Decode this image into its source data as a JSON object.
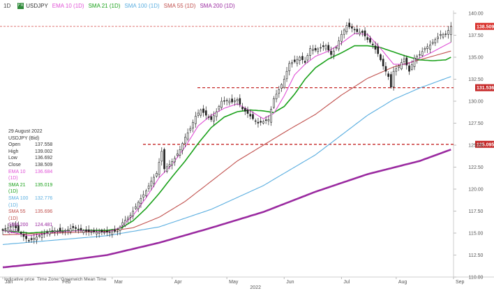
{
  "header": {
    "timeframe": "1D",
    "symbol": "USDJPY",
    "indicators": [
      {
        "label": "EMA 10 (1D)",
        "color": "#e052d6"
      },
      {
        "label": "SMA 21 (1D)",
        "color": "#1aa11a"
      },
      {
        "label": "SMA 100 (1D)",
        "color": "#5aaee0"
      },
      {
        "label": "SMA 55 (1D)",
        "color": "#c0504d"
      },
      {
        "label": "SMA 200 (1D)",
        "color": "#9a2aa0"
      }
    ]
  },
  "info_panel": {
    "date": "29 August 2022",
    "title": "USDJPY (Bid)",
    "rows": [
      {
        "label": "Open",
        "value": "137.558",
        "color": "#333333"
      },
      {
        "label": "High",
        "value": "139.002",
        "color": "#333333"
      },
      {
        "label": "Low",
        "value": "136.692",
        "color": "#333333"
      },
      {
        "label": "Close",
        "value": "138.509",
        "color": "#333333"
      },
      {
        "label": "EMA 10 (1D)",
        "value": "136.684",
        "color": "#e052d6"
      },
      {
        "label": "SMA 21 (1D)",
        "value": "135.019",
        "color": "#1aa11a"
      },
      {
        "label": "SMA 100 (1D)",
        "value": "132.776",
        "color": "#5aaee0"
      },
      {
        "label": "SMA 55 (1D)",
        "value": "135.696",
        "color": "#c0504d"
      },
      {
        "label": "SMA 200 (1D)",
        "value": "124.481",
        "color": "#9a2aa0"
      }
    ]
  },
  "footer": {
    "indicative": "Indicative price",
    "timezone": "Time Zone: Greenwich Mean Time"
  },
  "chart_data": {
    "type": "line",
    "subtype": "candlestick",
    "ylim": [
      110.0,
      140.0
    ],
    "yticks": [
      "140.00",
      "137.50",
      "135.00",
      "132.50",
      "130.00",
      "127.50",
      "125.00",
      "122.50",
      "120.00",
      "117.50",
      "115.00",
      "112.50",
      "110.00"
    ],
    "xlim": [
      0,
      172
    ],
    "x_ticks": [
      {
        "label": "Jan",
        "i": 0
      },
      {
        "label": "Feb",
        "i": 22
      },
      {
        "label": "Mar",
        "i": 42
      },
      {
        "label": "Apr",
        "i": 65
      },
      {
        "label": "May",
        "i": 86
      },
      {
        "label": "Jun",
        "i": 108
      },
      {
        "label": "Jul",
        "i": 130
      },
      {
        "label": "Aug",
        "i": 151
      },
      {
        "label": "Sep",
        "i": 173
      }
    ],
    "year_label": "2022",
    "close_points": [
      [
        0,
        115.3
      ],
      [
        4,
        115.9
      ],
      [
        8,
        114.6
      ],
      [
        10,
        114.1
      ],
      [
        14,
        114.7
      ],
      [
        19,
        115.3
      ],
      [
        23,
        115.2
      ],
      [
        27,
        115.6
      ],
      [
        32,
        115.2
      ],
      [
        36,
        115.1
      ],
      [
        40,
        115.1
      ],
      [
        44,
        115.2
      ],
      [
        46,
        116.2
      ],
      [
        49,
        117.0
      ],
      [
        52,
        118.5
      ],
      [
        55,
        119.8
      ],
      [
        57,
        120.9
      ],
      [
        59,
        121.8
      ],
      [
        61,
        124.3
      ],
      [
        62,
        122.3
      ],
      [
        64,
        122.8
      ],
      [
        66,
        123.5
      ],
      [
        68,
        124.5
      ],
      [
        70,
        125.9
      ],
      [
        72,
        126.9
      ],
      [
        74,
        128.3
      ],
      [
        76,
        129.0
      ],
      [
        78,
        128.4
      ],
      [
        80,
        127.9
      ],
      [
        82,
        128.8
      ],
      [
        84,
        130.0
      ],
      [
        86,
        130.1
      ],
      [
        88,
        129.9
      ],
      [
        90,
        130.2
      ],
      [
        92,
        129.1
      ],
      [
        94,
        128.6
      ],
      [
        96,
        128.0
      ],
      [
        98,
        127.5
      ],
      [
        100,
        127.7
      ],
      [
        102,
        127.9
      ],
      [
        104,
        130.3
      ],
      [
        106,
        131.3
      ],
      [
        108,
        132.5
      ],
      [
        110,
        134.3
      ],
      [
        112,
        134.5
      ],
      [
        114,
        135.0
      ],
      [
        116,
        134.4
      ],
      [
        118,
        136.0
      ],
      [
        120,
        135.8
      ],
      [
        122,
        136.1
      ],
      [
        124,
        136.3
      ],
      [
        126,
        135.3
      ],
      [
        128,
        136.1
      ],
      [
        130,
        137.6
      ],
      [
        132,
        138.6
      ],
      [
        134,
        138.3
      ],
      [
        136,
        137.9
      ],
      [
        138,
        137.8
      ],
      [
        140,
        137.0
      ],
      [
        142,
        136.4
      ],
      [
        144,
        135.4
      ],
      [
        146,
        134.0
      ],
      [
        148,
        132.8
      ],
      [
        149,
        131.6
      ],
      [
        150,
        133.4
      ],
      [
        152,
        134.0
      ],
      [
        154,
        134.8
      ],
      [
        156,
        133.4
      ],
      [
        158,
        134.9
      ],
      [
        160,
        135.3
      ],
      [
        162,
        136.0
      ],
      [
        164,
        136.4
      ],
      [
        166,
        137.0
      ],
      [
        168,
        137.6
      ],
      [
        170,
        137.6
      ],
      [
        172,
        138.5
      ]
    ],
    "series": [
      {
        "name": "EMA 10 (1D)",
        "color": "#e052d6",
        "points": [
          [
            0,
            115.3
          ],
          [
            10,
            114.7
          ],
          [
            20,
            115.1
          ],
          [
            30,
            115.3
          ],
          [
            40,
            115.1
          ],
          [
            45,
            115.6
          ],
          [
            50,
            117.0
          ],
          [
            55,
            119.0
          ],
          [
            60,
            121.3
          ],
          [
            65,
            122.8
          ],
          [
            70,
            124.8
          ],
          [
            75,
            127.2
          ],
          [
            80,
            128.4
          ],
          [
            85,
            129.2
          ],
          [
            90,
            129.7
          ],
          [
            95,
            128.9
          ],
          [
            100,
            128.0
          ],
          [
            104,
            128.6
          ],
          [
            108,
            130.6
          ],
          [
            112,
            133.0
          ],
          [
            116,
            134.2
          ],
          [
            120,
            135.1
          ],
          [
            125,
            135.7
          ],
          [
            130,
            136.6
          ],
          [
            135,
            137.7
          ],
          [
            140,
            137.6
          ],
          [
            145,
            136.0
          ],
          [
            150,
            134.2
          ],
          [
            155,
            134.2
          ],
          [
            160,
            134.9
          ],
          [
            165,
            135.6
          ],
          [
            170,
            136.4
          ],
          [
            172,
            136.7
          ]
        ]
      },
      {
        "name": "SMA 21 (1D)",
        "color": "#1aa11a",
        "points": [
          [
            0,
            115.3
          ],
          [
            10,
            115.0
          ],
          [
            20,
            115.2
          ],
          [
            30,
            115.3
          ],
          [
            40,
            115.3
          ],
          [
            45,
            115.5
          ],
          [
            50,
            116.4
          ],
          [
            55,
            117.8
          ],
          [
            60,
            119.5
          ],
          [
            65,
            121.4
          ],
          [
            70,
            123.2
          ],
          [
            75,
            125.2
          ],
          [
            80,
            127.0
          ],
          [
            85,
            128.2
          ],
          [
            90,
            128.8
          ],
          [
            95,
            129.0
          ],
          [
            100,
            128.9
          ],
          [
            104,
            128.7
          ],
          [
            108,
            129.4
          ],
          [
            112,
            130.8
          ],
          [
            116,
            132.5
          ],
          [
            120,
            133.8
          ],
          [
            125,
            134.8
          ],
          [
            130,
            135.5
          ],
          [
            135,
            136.3
          ],
          [
            140,
            136.3
          ],
          [
            145,
            136.1
          ],
          [
            150,
            135.6
          ],
          [
            155,
            135.1
          ],
          [
            160,
            134.7
          ],
          [
            165,
            134.6
          ],
          [
            170,
            134.7
          ],
          [
            172,
            135.0
          ]
        ]
      },
      {
        "name": "SMA 55 (1D)",
        "color": "#c0504d",
        "points": [
          [
            0,
            114.8
          ],
          [
            20,
            115.0
          ],
          [
            40,
            115.2
          ],
          [
            50,
            115.6
          ],
          [
            60,
            116.8
          ],
          [
            70,
            118.6
          ],
          [
            80,
            120.9
          ],
          [
            90,
            123.2
          ],
          [
            100,
            125.0
          ],
          [
            110,
            126.8
          ],
          [
            120,
            128.5
          ],
          [
            130,
            130.7
          ],
          [
            140,
            132.6
          ],
          [
            150,
            133.9
          ],
          [
            160,
            134.7
          ],
          [
            172,
            135.7
          ]
        ]
      },
      {
        "name": "SMA 100 (1D)",
        "color": "#5aaee0",
        "points": [
          [
            0,
            113.7
          ],
          [
            20,
            114.2
          ],
          [
            40,
            114.7
          ],
          [
            60,
            115.7
          ],
          [
            80,
            117.7
          ],
          [
            100,
            120.4
          ],
          [
            120,
            123.9
          ],
          [
            140,
            128.4
          ],
          [
            150,
            130.2
          ],
          [
            160,
            131.5
          ],
          [
            172,
            132.8
          ]
        ]
      },
      {
        "name": "SMA 200 (1D)",
        "color": "#9a2aa0",
        "points": [
          [
            0,
            111.1
          ],
          [
            20,
            111.7
          ],
          [
            40,
            112.5
          ],
          [
            60,
            113.9
          ],
          [
            80,
            115.6
          ],
          [
            100,
            117.4
          ],
          [
            120,
            119.7
          ],
          [
            140,
            121.7
          ],
          [
            160,
            123.2
          ],
          [
            172,
            124.5
          ]
        ]
      }
    ],
    "levels": [
      {
        "value": 138.509,
        "label": "138.509",
        "bg": "#d9322d",
        "fg": "#ffffff",
        "line_color": "#e07a78",
        "dash": "3,2",
        "width": 1
      },
      {
        "value": 131.536,
        "label": "131.536",
        "bg": "#c62828",
        "fg": "#ffffff",
        "line_color": "#c62828",
        "dash": "4,3",
        "width": 1.3
      },
      {
        "value": 125.095,
        "label": "125.095",
        "bg": "#c62828",
        "fg": "#ffffff",
        "line_color": "#c62828",
        "dash": "4,3",
        "width": 1.3
      }
    ]
  }
}
